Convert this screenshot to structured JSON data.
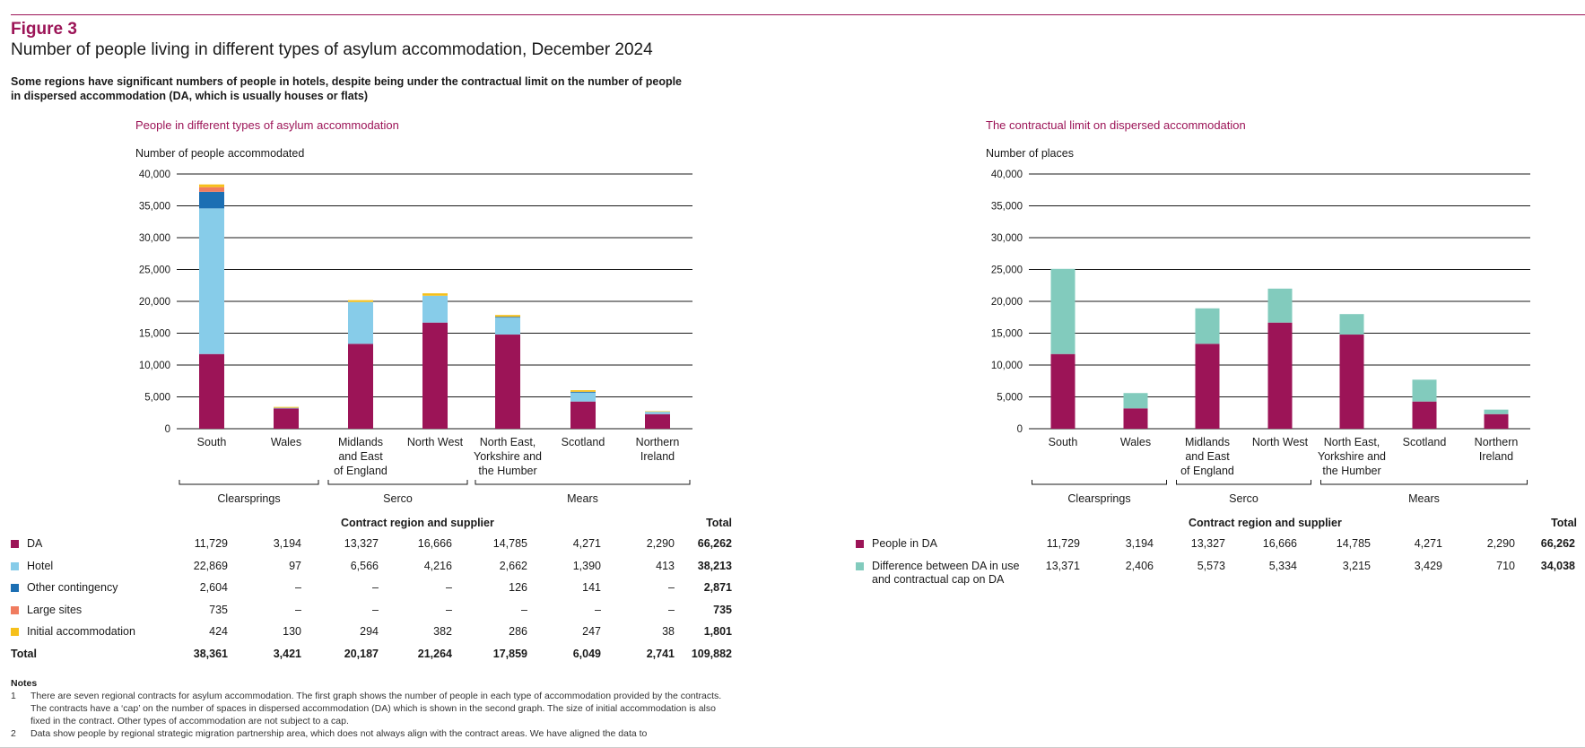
{
  "figure_label": "Figure 3",
  "figure_title": "Number of people living in different types of asylum accommodation, December 2024",
  "figure_subtitle": "Some regions have significant numbers of people in hotels, despite being under the contractual limit on the number of people in dispersed accommodation (DA, which is usually houses or flats)",
  "colors": {
    "DA": "#9c1457",
    "Hotel": "#87cce9",
    "Other contingency": "#1c6fb3",
    "Large sites": "#f07c5f",
    "Initial accommodation": "#f6c01b",
    "Difference": "#82cbbd"
  },
  "region_groups": [
    {
      "label": "Clearsprings",
      "regions": [
        "South",
        "Wales"
      ]
    },
    {
      "label": "Serco",
      "regions": [
        "Midlands and East of England",
        "North West"
      ]
    },
    {
      "label": "Mears",
      "regions": [
        "North East, Yorkshire and the Humber",
        "Scotland",
        "Northern Ireland"
      ]
    }
  ],
  "table_header": {
    "region_label": "Contract region and supplier",
    "total_label": "Total"
  },
  "left_table": {
    "rows": [
      {
        "label": "DA",
        "values": [
          "11,729",
          "3,194",
          "13,327",
          "16,666",
          "14,785",
          "4,271",
          "2,290"
        ],
        "total": "66,262"
      },
      {
        "label": "Hotel",
        "values": [
          "22,869",
          "97",
          "6,566",
          "4,216",
          "2,662",
          "1,390",
          "413"
        ],
        "total": "38,213"
      },
      {
        "label": "Other contingency",
        "values": [
          "2,604",
          "–",
          "–",
          "–",
          "126",
          "141",
          "–"
        ],
        "total": "2,871"
      },
      {
        "label": "Large sites",
        "values": [
          "735",
          "–",
          "–",
          "–",
          "–",
          "–",
          "–"
        ],
        "total": "735"
      },
      {
        "label": "Initial accommodation",
        "values": [
          "424",
          "130",
          "294",
          "382",
          "286",
          "247",
          "38"
        ],
        "total": "1,801"
      }
    ],
    "total_row": {
      "label": "Total",
      "values": [
        "38,361",
        "3,421",
        "20,187",
        "21,264",
        "17,859",
        "6,049",
        "2,741"
      ],
      "total": "109,882"
    }
  },
  "right_table": {
    "rows": [
      {
        "label": "People in DA",
        "values": [
          "11,729",
          "3,194",
          "13,327",
          "16,666",
          "14,785",
          "4,271",
          "2,290"
        ],
        "total": "66,262"
      },
      {
        "label": "Difference between DA in use and contractual cap on DA",
        "values": [
          "13,371",
          "2,406",
          "5,573",
          "5,334",
          "3,215",
          "3,429",
          "710"
        ],
        "total": "34,038"
      }
    ]
  },
  "notes": {
    "heading": "Notes",
    "items": [
      {
        "num": "1",
        "text": "There are seven regional contracts for asylum accommodation. The first graph shows the number of people in each type of accommodation provided by the contracts. The contracts have a ‘cap’ on the number of spaces in dispersed accommodation (DA) which is shown in the second graph. The size of initial accommodation is also fixed in the contract. Other types of accommodation are not subject to a cap."
      },
      {
        "num": "2",
        "text": "Data show people by regional strategic migration partnership area, which does not always align with the contract areas. We have aligned the data to"
      }
    ]
  },
  "chart_data": [
    {
      "type": "bar",
      "stacked": true,
      "title": "People in different types of asylum accommodation",
      "ylabel": "Number of people accommodated",
      "ylim": [
        0,
        40000
      ],
      "yticks": [
        "0",
        "5,000",
        "10,000",
        "15,000",
        "20,000",
        "25,000",
        "30,000",
        "35,000",
        "40,000"
      ],
      "categories": [
        "South",
        "Wales",
        "Midlands and East of England",
        "North West",
        "North East, Yorkshire and the Humber",
        "Scotland",
        "Northern Ireland"
      ],
      "category_lines": [
        [
          "South"
        ],
        [
          "Wales"
        ],
        [
          "Midlands",
          "and East",
          "of England"
        ],
        [
          "North West"
        ],
        [
          "North East,",
          "Yorkshire and",
          "the Humber"
        ],
        [
          "Scotland"
        ],
        [
          "Northern",
          "Ireland"
        ]
      ],
      "series": [
        {
          "name": "DA",
          "values": [
            11729,
            3194,
            13327,
            16666,
            14785,
            4271,
            2290
          ]
        },
        {
          "name": "Hotel",
          "values": [
            22869,
            97,
            6566,
            4216,
            2662,
            1390,
            413
          ]
        },
        {
          "name": "Other contingency",
          "values": [
            2604,
            0,
            0,
            0,
            126,
            141,
            0
          ]
        },
        {
          "name": "Large sites",
          "values": [
            735,
            0,
            0,
            0,
            0,
            0,
            0
          ]
        },
        {
          "name": "Initial accommodation",
          "values": [
            424,
            130,
            294,
            382,
            286,
            247,
            38
          ]
        }
      ]
    },
    {
      "type": "bar",
      "stacked": true,
      "title": "The contractual limit on dispersed accommodation",
      "ylabel": "Number of places",
      "ylim": [
        0,
        40000
      ],
      "yticks": [
        "0",
        "5,000",
        "10,000",
        "15,000",
        "20,000",
        "25,000",
        "30,000",
        "35,000",
        "40,000"
      ],
      "categories": [
        "South",
        "Wales",
        "Midlands and East of England",
        "North West",
        "North East, Yorkshire and the Humber",
        "Scotland",
        "Northern Ireland"
      ],
      "category_lines": [
        [
          "South"
        ],
        [
          "Wales"
        ],
        [
          "Midlands",
          "and East",
          "of England"
        ],
        [
          "North West"
        ],
        [
          "North East,",
          "Yorkshire and",
          "the Humber"
        ],
        [
          "Scotland"
        ],
        [
          "Northern",
          "Ireland"
        ]
      ],
      "series": [
        {
          "name": "People in DA",
          "values": [
            11729,
            3194,
            13327,
            16666,
            14785,
            4271,
            2290
          ]
        },
        {
          "name": "Difference between DA in use and contractual cap on DA",
          "values": [
            13371,
            2406,
            5573,
            5334,
            3215,
            3429,
            710
          ]
        }
      ]
    }
  ]
}
